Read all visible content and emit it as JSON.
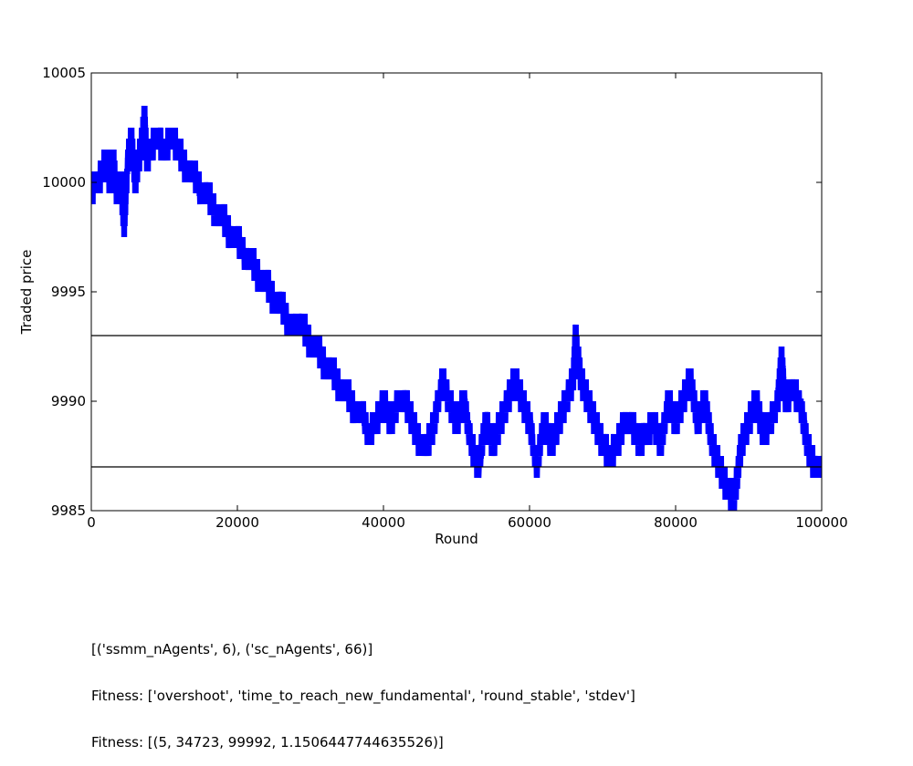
{
  "chart_data": {
    "type": "line",
    "xlabel": "Round",
    "ylabel": "Traded price",
    "xlim": [
      0,
      100000
    ],
    "ylim": [
      9985,
      10005
    ],
    "xticks": [
      0,
      20000,
      40000,
      60000,
      80000,
      100000
    ],
    "xtick_labels": [
      "0",
      "20000",
      "40000",
      "60000",
      "80000",
      "100000"
    ],
    "yticks": [
      9985,
      9990,
      9995,
      10000,
      10005
    ],
    "ytick_labels": [
      "9985",
      "9990",
      "9995",
      "10000",
      "10005"
    ],
    "grid": false,
    "line_color": "#0000ff",
    "reference_line_color": "#000000",
    "reference_lines": [
      9993,
      9987
    ],
    "series": [
      {
        "x": [
          0,
          500,
          1000,
          2000,
          2500,
          3000,
          3500,
          4000,
          4500,
          5000,
          5500,
          6000,
          6500,
          7000,
          7300,
          7600,
          8000,
          9000,
          10000,
          11000,
          12000,
          13000,
          14000,
          15000,
          16000,
          17000,
          18000,
          19000,
          20000,
          21000,
          22000,
          23000,
          24000,
          25000,
          26000,
          27000,
          28000,
          29000,
          30000,
          31000,
          32000,
          33000,
          34000,
          35000,
          36000,
          37000,
          38000,
          39000,
          40000,
          41000,
          42000,
          43000,
          44000,
          45000,
          46000,
          47000,
          48000,
          49000,
          50000,
          51000,
          52000,
          53000,
          54000,
          55000,
          56000,
          57000,
          58000,
          59000,
          60000,
          61000,
          62000,
          63000,
          64000,
          65000,
          66000,
          66300,
          67000,
          68000,
          69000,
          70000,
          71000,
          72000,
          73000,
          74000,
          75000,
          76000,
          77000,
          78000,
          79000,
          80000,
          81000,
          82000,
          83000,
          84000,
          85000,
          86000,
          87000,
          88000,
          89000,
          90000,
          91000,
          92000,
          93000,
          94000,
          94500,
          95000,
          96000,
          97000,
          98000,
          99000,
          100000
        ],
        "y": [
          9999.5,
          10000,
          10000,
          10001,
          10000,
          10001,
          9999.5,
          10000,
          9998,
          10001,
          10002,
          10000,
          10001,
          10002,
          10003,
          10001,
          10001.5,
          10002,
          10001.5,
          10002,
          10001.5,
          10000.5,
          10000.5,
          9999.5,
          9999.5,
          9998.5,
          9998.5,
          9997.5,
          9997.5,
          9996.5,
          9996.5,
          9995.5,
          9995.5,
          9994.5,
          9994.5,
          9993.5,
          9993.5,
          9993.5,
          9992.5,
          9992.5,
          9991.5,
          9991.5,
          9990.5,
          9990.5,
          9989.5,
          9989.5,
          9988.5,
          9989,
          9990,
          9989,
          9990,
          9990,
          9989,
          9988,
          9988,
          9989,
          9991,
          9990,
          9989,
          9990,
          9988,
          9987,
          9989,
          9988,
          9989,
          9990,
          9991,
          9990,
          9989,
          9987,
          9989,
          9988,
          9989,
          9990,
          9991,
          9993,
          9991,
          9990,
          9989,
          9988,
          9987.5,
          9988,
          9989,
          9989,
          9988,
          9988.5,
          9989,
          9988,
          9990,
          9989,
          9990,
          9991,
          9989,
          9990,
          9988,
          9987,
          9986,
          9985.5,
          9988,
          9989,
          9990,
          9988.5,
          9989,
          9990,
          9992,
          9990,
          9990.5,
          9990,
          9988,
          9987,
          9987
        ]
      }
    ]
  },
  "caption": {
    "line1": "[('ssmm_nAgents', 6), ('sc_nAgents', 66)]",
    "line2": "Fitness: ['overshoot', 'time_to_reach_new_fundamental', 'round_stable', 'stdev']",
    "line3": "Fitness: [(5, 34723, 99992, 1.1506447744635526)]"
  }
}
